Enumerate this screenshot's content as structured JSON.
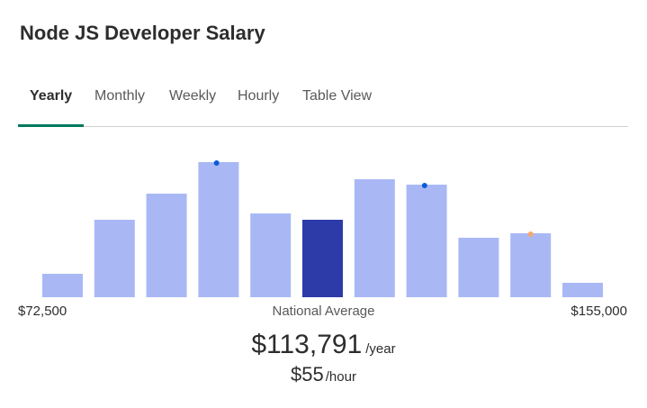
{
  "title": "Node JS Developer Salary",
  "tabs": [
    {
      "label": "Yearly",
      "active": true
    },
    {
      "label": "Monthly",
      "active": false
    },
    {
      "label": "Weekly",
      "active": false
    },
    {
      "label": "Hourly",
      "active": false
    },
    {
      "label": "Table View",
      "active": false
    }
  ],
  "colors": {
    "bar": "#a9b8f5",
    "bar_highlight": "#2c3ba8",
    "dot_blue": "#0b5cd7",
    "dot_orange": "#f5a86a",
    "tab_underline": "#007a5e"
  },
  "chart_data": {
    "type": "bar",
    "x_min_label": "$72,500",
    "x_max_label": "$155,000",
    "values": [
      26,
      86,
      115,
      150,
      93,
      86,
      131,
      125,
      66,
      71,
      16
    ],
    "highlight_index": 5,
    "markers": [
      {
        "bar": 3,
        "color": "blue"
      },
      {
        "bar": 7,
        "color": "blue"
      },
      {
        "bar": 9,
        "color": "orange"
      }
    ],
    "center_label": "National Average"
  },
  "salary": {
    "yearly": "$113,791",
    "yearly_unit": "/year",
    "hourly": "$55",
    "hourly_unit": "/hour"
  }
}
